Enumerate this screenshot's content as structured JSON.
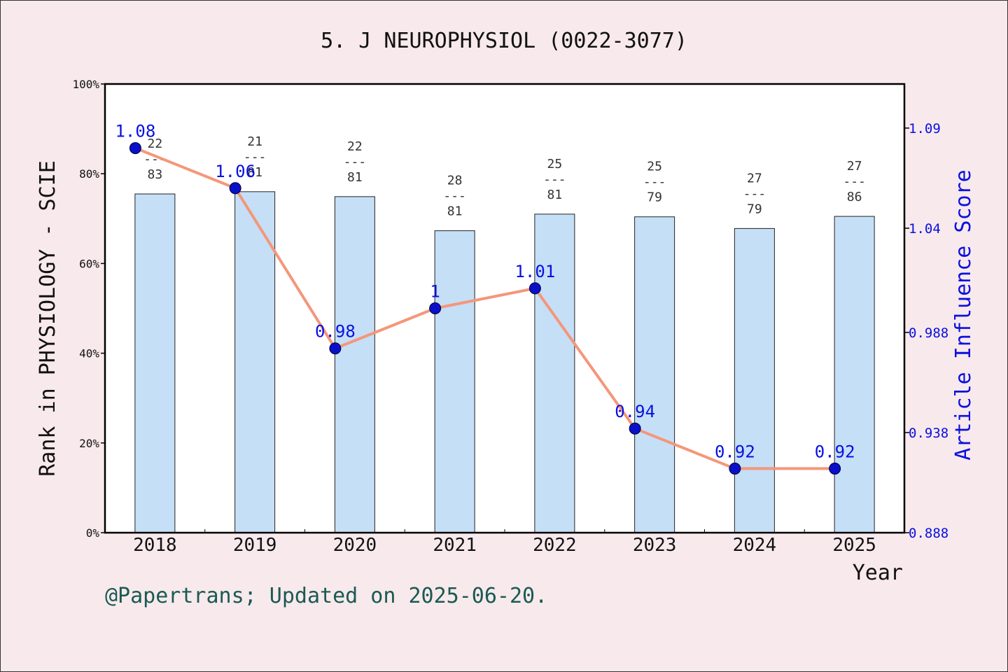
{
  "chart_data": {
    "type": "bar+line",
    "title": "5. J NEUROPHYSIOL (0022-3077)",
    "xlabel": "Year",
    "ylabel_left": "Rank in PHYSIOLOGY - SCIE",
    "ylabel_right": "Article Influence Score",
    "categories": [
      "2018",
      "2019",
      "2020",
      "2021",
      "2022",
      "2023",
      "2024",
      "2025"
    ],
    "bar_series": {
      "values_percent": [
        75.5,
        76.0,
        74.9,
        67.3,
        71.0,
        70.4,
        67.8,
        70.5
      ],
      "rank": [
        "22",
        "21",
        "22",
        "28",
        "25",
        "25",
        "27",
        "27"
      ],
      "total": [
        "83",
        "81",
        "81",
        "81",
        "81",
        "79",
        "79",
        "86"
      ],
      "color": "#c5dff7"
    },
    "line_series": {
      "values": [
        1.08,
        1.06,
        0.98,
        1.0,
        1.01,
        0.94,
        0.92,
        0.92
      ],
      "labels": [
        "1.08",
        "1.06",
        "0.98",
        "1",
        "1.01",
        "0.94",
        "0.92",
        "0.92"
      ],
      "color": "#f4977a",
      "marker_color": "#0a10c8"
    },
    "ylim_left": [
      0,
      100
    ],
    "yticks_left": [
      "0%",
      "20%",
      "40%",
      "60%",
      "80%",
      "100%"
    ],
    "ylim_right": [
      0.888,
      1.112
    ],
    "yticks_right": [
      "0.888",
      "0.938",
      "0.988",
      "1.04",
      "1.09"
    ],
    "yticks_right_values": [
      0.888,
      0.938,
      0.988,
      1.04,
      1.09
    ]
  },
  "footer": "@Papertrans; Updated on 2025-06-20."
}
